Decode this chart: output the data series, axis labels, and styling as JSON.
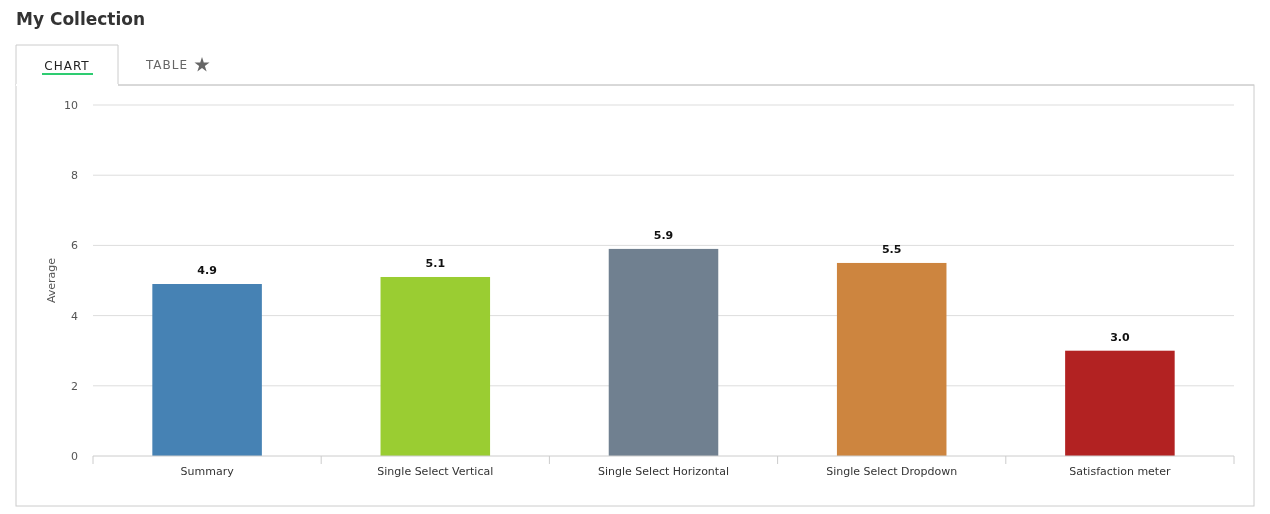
{
  "chart_data": {
    "type": "bar",
    "title": "My Collection",
    "ylabel": "Average",
    "annotations": [
      "CHART",
      "TABLE"
    ],
    "categories": [
      "Summary",
      "Single Select Vertical",
      "Single Select Horizontal",
      "Single Select Dropdown",
      "Satisfaction meter"
    ],
    "values": [
      4.9,
      5.1,
      5.9,
      5.5,
      3.0
    ],
    "value_labels": [
      "4.9",
      "5.1",
      "5.9",
      "5.5",
      "3.0"
    ],
    "colors": [
      "#4682b4",
      "#9acd32",
      "#708090",
      "#cd853f",
      "#b22222"
    ],
    "ylim": [
      0,
      10
    ],
    "yticks": [
      0,
      2,
      4,
      6,
      8,
      10
    ],
    "grid": "y"
  }
}
